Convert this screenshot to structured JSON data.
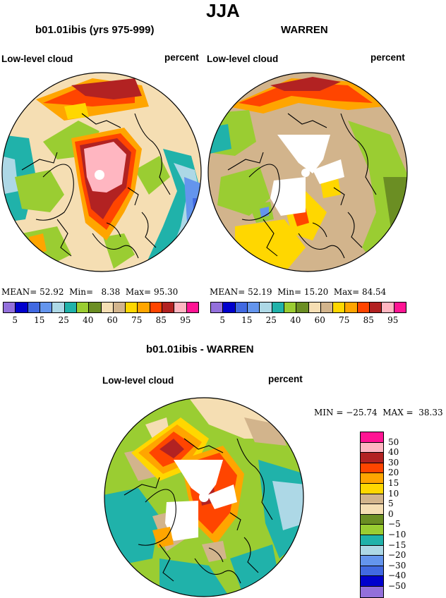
{
  "title": "JJA",
  "panels": [
    {
      "title": "b01.01ibis (yrs 975-999)",
      "left_label": "Low-level cloud",
      "right_label": "percent",
      "stats": {
        "mean_label": "MEAN=",
        "mean": "52.92",
        "min_label": "Min=",
        "min": "8.38",
        "max_label": "Max=",
        "max": "95.30"
      }
    },
    {
      "title": "WARREN",
      "left_label": "Low-level cloud",
      "right_label": "percent",
      "stats": {
        "mean_label": "MEAN=",
        "mean": "52.19",
        "min_label": "Min=",
        "min": "15.20",
        "max_label": "Max=",
        "max": "84.54"
      }
    },
    {
      "title": "b01.01ibis - WARREN",
      "left_label": "Low-level cloud",
      "right_label": "percent",
      "stats_text": "MIN = −25.74  MAX =  38.33"
    }
  ],
  "abs_colorbar": {
    "colors": [
      "#9370db",
      "#0000cd",
      "#4169e1",
      "#6495ed",
      "#add8e6",
      "#20b2aa",
      "#9acd32",
      "#6b8e23",
      "#f5deb3",
      "#d2b48c",
      "#ffd700",
      "#ffa500",
      "#ff4500",
      "#b22222",
      "#ffb6c1",
      "#ff1493"
    ],
    "labels": [
      "5",
      "15",
      "25",
      "40",
      "60",
      "75",
      "85",
      "95"
    ]
  },
  "diff_colorbar": {
    "colors": [
      "#ff1493",
      "#ffb6c1",
      "#b22222",
      "#ff4500",
      "#ffa500",
      "#ffd700",
      "#d2b48c",
      "#f5deb3",
      "#6b8e23",
      "#9acd32",
      "#20b2aa",
      "#add8e6",
      "#6495ed",
      "#4169e1",
      "#0000cd",
      "#9370db"
    ],
    "labels": [
      "50",
      "40",
      "30",
      "20",
      "15",
      "10",
      "5",
      "0",
      "−5",
      "−10",
      "−15",
      "−20",
      "−30",
      "−40",
      "−50"
    ]
  }
}
